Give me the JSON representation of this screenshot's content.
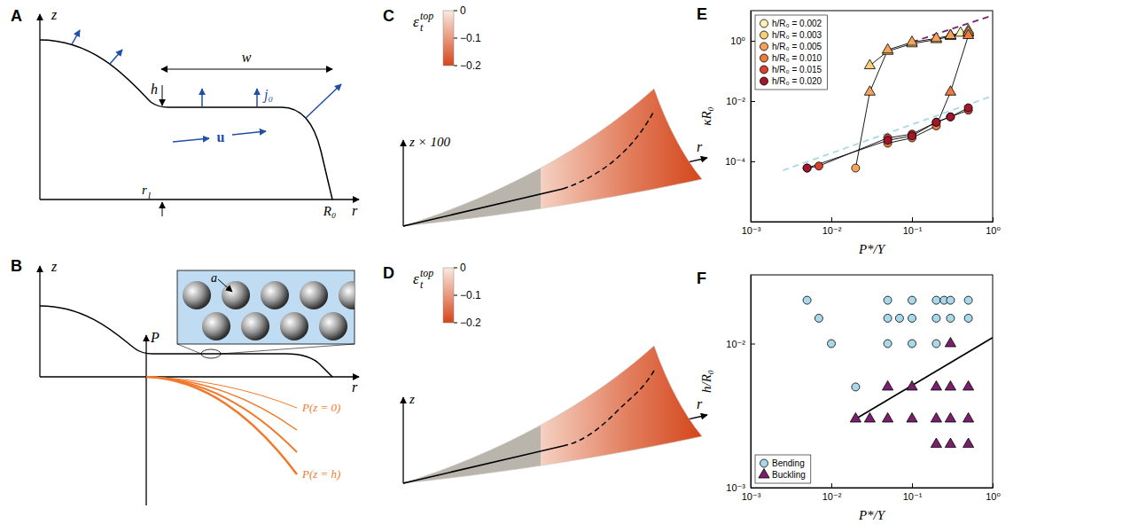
{
  "panels": {
    "A": {
      "letter": "A",
      "z_axis": "z",
      "r_axis": "r",
      "width": "w",
      "thickness": "h",
      "flux": "j₀",
      "velocity": "u",
      "contact_line": {
        "base": "r",
        "sub": "l"
      },
      "radius": "R₀"
    },
    "B": {
      "letter": "B",
      "z_axis": "z",
      "r_axis": "r",
      "pressure_axis": "P",
      "particle_radius": "a",
      "curves": [
        "P(z = 0)",
        "P(z = h)"
      ]
    },
    "C": {
      "letter": "C",
      "z_axis": "z × 100",
      "r_axis": "r",
      "colorbar": {
        "label": {
          "base": "ε",
          "sub": "t",
          "sup": "top"
        },
        "range": [
          -0.2,
          0
        ],
        "ticks": [
          0,
          {
            "value": -0.1,
            "label": "−0.1"
          },
          {
            "value": -0.2,
            "label": "−0.2"
          }
        ]
      }
    },
    "D": {
      "letter": "D",
      "z_axis": "z",
      "r_axis": "r",
      "colorbar": {
        "label": {
          "base": "ε",
          "sub": "t",
          "sup": "top"
        },
        "range": [
          -0.2,
          0
        ],
        "ticks": [
          0,
          {
            "value": -0.1,
            "label": "−0.1"
          },
          {
            "value": -0.2,
            "label": "−0.2"
          }
        ]
      }
    }
  },
  "chart_data": [
    {
      "panel_label": "E",
      "type": "line",
      "log": true,
      "xlabel": "P*/Y",
      "ylabel": "κR₀",
      "xlim": [
        0.001,
        1
      ],
      "ylim": [
        1e-06,
        10
      ],
      "xticks": [
        {
          "value": 0.001,
          "label": "10⁻³"
        },
        {
          "value": 0.01,
          "label": "10⁻²"
        },
        {
          "value": 0.1,
          "label": "10⁻¹"
        },
        {
          "value": 1,
          "label": "10⁰"
        }
      ],
      "yticks": [
        {
          "value": 0.0001,
          "label": "10⁻⁴"
        },
        {
          "value": 0.01,
          "label": "10⁻²"
        },
        {
          "value": 1,
          "label": "10⁰"
        }
      ],
      "legend": "upper left",
      "series": [
        {
          "name": "h/R₀ = 0.002",
          "color": "#fdf1b8",
          "x": [
            0.3,
            0.4,
            0.5
          ],
          "values": [
            1.5,
            1.8,
            2.2
          ],
          "marker": "triangle"
        },
        {
          "name": "h/R₀ = 0.003",
          "color": "#f9cf7a",
          "x": [
            0.03,
            0.05,
            0.1,
            0.2,
            0.3,
            0.5
          ],
          "values": [
            0.15,
            0.45,
            0.8,
            1.1,
            1.4,
            1.8
          ],
          "marker": "triangle"
        },
        {
          "name": "h/R₀ = 0.005",
          "color": "#f4a45a",
          "x": [
            0.02,
            0.03,
            0.05,
            0.1,
            0.2,
            0.3,
            0.5
          ],
          "values": [
            6e-05,
            0.02,
            0.5,
            0.9,
            1.2,
            1.5,
            1.9
          ],
          "marker": [
            "circle",
            "triangle",
            "triangle",
            "triangle",
            "triangle",
            "triangle",
            "triangle"
          ]
        },
        {
          "name": "h/R₀ = 0.010",
          "color": "#ec7b40",
          "x": [
            0.05,
            0.1,
            0.2,
            0.3,
            0.5
          ],
          "values": [
            0.0004,
            0.0006,
            0.0015,
            0.02,
            1.5
          ],
          "marker": [
            "circle",
            "circle",
            "circle",
            "triangle",
            "triangle"
          ]
        },
        {
          "name": "h/R₀ = 0.015",
          "color": "#d6442f",
          "x": [
            0.005,
            0.007,
            0.05,
            0.1,
            0.2,
            0.3,
            0.5
          ],
          "values": [
            6e-05,
            7e-05,
            0.0006,
            0.0008,
            0.002,
            0.003,
            0.005
          ],
          "marker": "circle"
        },
        {
          "name": "h/R₀ = 0.020",
          "color": "#a3162c",
          "x": [
            0.005,
            0.05,
            0.1,
            0.2,
            0.3,
            0.5
          ],
          "values": [
            6e-05,
            0.0005,
            0.0007,
            0.002,
            0.003,
            0.006
          ],
          "marker": "circle"
        }
      ],
      "guide_lines": [
        {
          "x": [
            0.1,
            1
          ],
          "values": [
            0.9,
            7
          ],
          "color": "#7a1e6e",
          "line_style": "dashed"
        },
        {
          "x": [
            0.0025,
            1
          ],
          "values": [
            5e-05,
            0.015
          ],
          "color": "#a8d8ea",
          "line_style": "dashed"
        }
      ]
    },
    {
      "panel_label": "F",
      "type": "scatter",
      "log": true,
      "xlabel": "P*/Y",
      "ylabel": "h/R₀",
      "xlim": [
        0.001,
        1
      ],
      "ylim": [
        0.001,
        0.03
      ],
      "xticks": [
        {
          "value": 0.001,
          "label": "10⁻³"
        },
        {
          "value": 0.01,
          "label": "10⁻²"
        },
        {
          "value": 0.1,
          "label": "10⁻¹"
        },
        {
          "value": 1,
          "label": "10⁰"
        }
      ],
      "yticks": [
        {
          "value": 0.001,
          "label": "10⁻³"
        },
        {
          "value": 0.01,
          "label": "10⁻²"
        }
      ],
      "legend": "lower left",
      "series": [
        {
          "name": "Bending",
          "color": "#a8d8ea",
          "marker": "circle",
          "x": [
            0.005,
            0.007,
            0.01,
            0.02,
            0.05,
            0.1,
            0.2,
            0.25,
            0.3,
            0.5,
            0.05,
            0.07,
            0.1,
            0.2,
            0.3,
            0.5,
            0.05,
            0.1,
            0.2
          ],
          "values": [
            0.02,
            0.015,
            0.01,
            0.005,
            0.02,
            0.02,
            0.02,
            0.02,
            0.02,
            0.02,
            0.015,
            0.015,
            0.015,
            0.015,
            0.015,
            0.015,
            0.01,
            0.01,
            0.01
          ]
        },
        {
          "name": "Buckling",
          "color": "#7a1e6e",
          "marker": "triangle",
          "x": [
            0.3,
            0.05,
            0.1,
            0.2,
            0.3,
            0.5,
            0.02,
            0.03,
            0.05,
            0.1,
            0.2,
            0.3,
            0.5,
            0.2,
            0.3,
            0.5
          ],
          "values": [
            0.01,
            0.005,
            0.005,
            0.005,
            0.005,
            0.005,
            0.003,
            0.003,
            0.003,
            0.003,
            0.003,
            0.003,
            0.003,
            0.002,
            0.002,
            0.002
          ]
        }
      ],
      "guide_lines": [
        {
          "x": [
            0.02,
            1
          ],
          "values": [
            0.003,
            0.011
          ],
          "color": "#000000",
          "line_style": "solid"
        }
      ]
    }
  ]
}
